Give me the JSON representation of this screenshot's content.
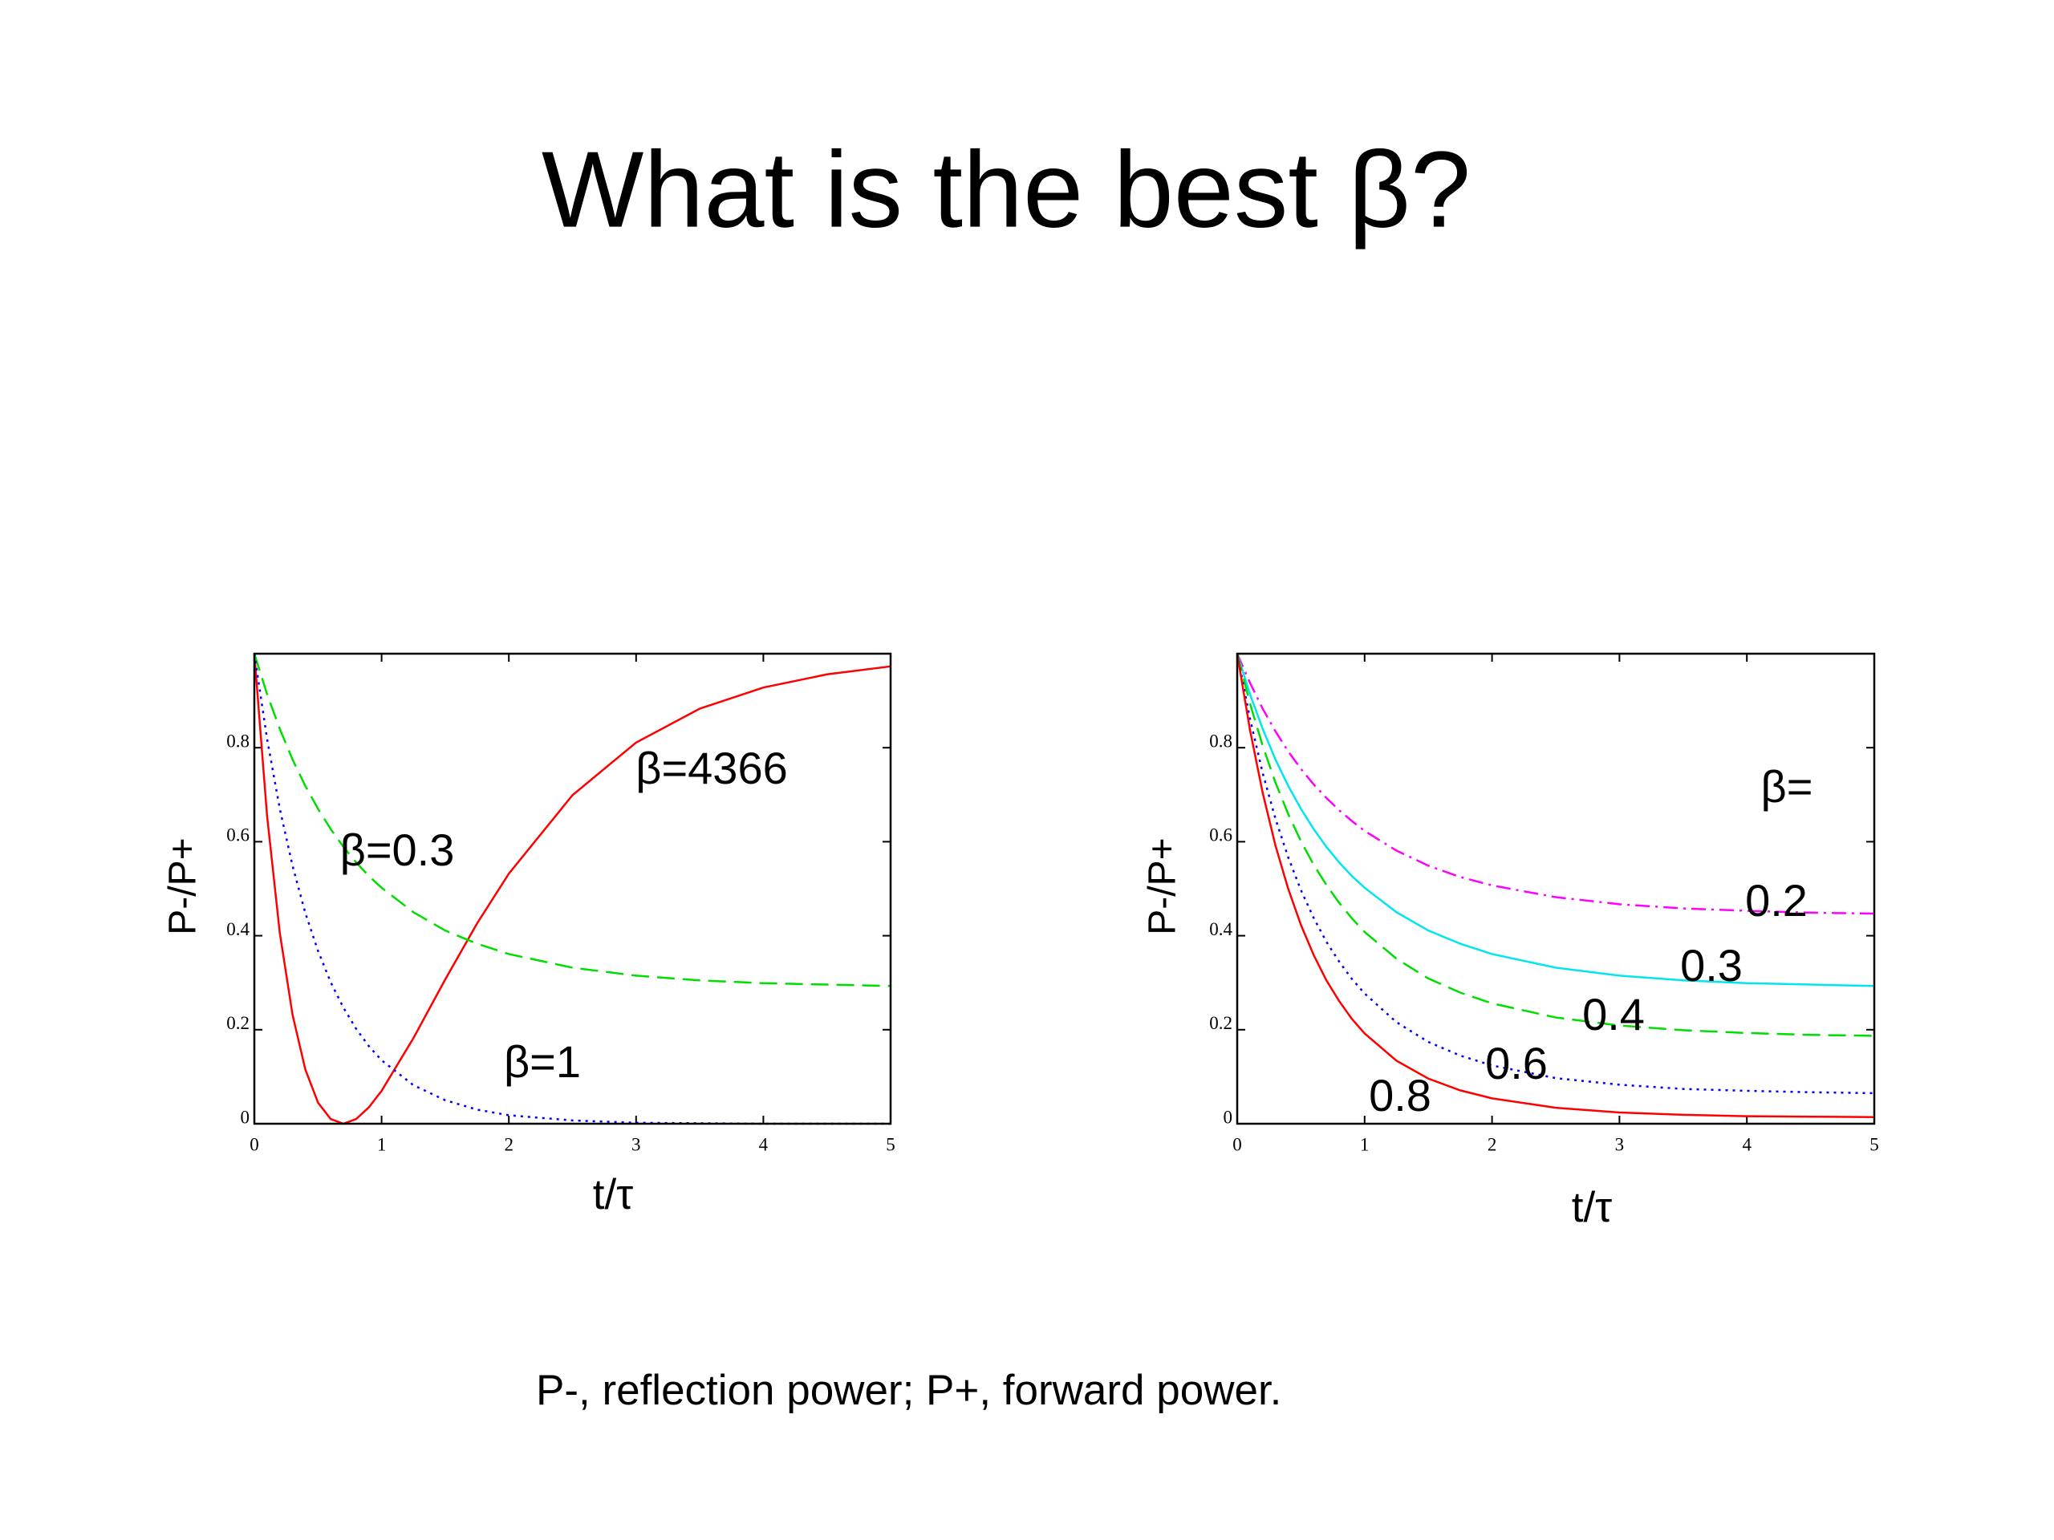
{
  "title": "What is the best β?",
  "caption": "P-, reflection power; P+, forward power.",
  "chart_data": [
    {
      "type": "line",
      "xlabel": "t/τ",
      "ylabel": "P-/P+",
      "x": [
        0,
        0.1,
        0.2,
        0.3,
        0.4,
        0.5,
        0.6,
        0.7,
        0.8,
        0.9,
        1,
        1.25,
        1.5,
        1.75,
        2,
        2.5,
        3,
        3.5,
        4,
        4.5,
        5
      ],
      "xlim": [
        0,
        5
      ],
      "xticks": [
        0,
        1,
        2,
        3,
        4,
        5
      ],
      "ylim": [
        0,
        1
      ],
      "yticks": [
        0,
        0.2,
        0.4,
        0.6,
        0.8
      ],
      "series": [
        {
          "name": "β=4366",
          "color": "#ff0000",
          "style": "solid",
          "values": [
            1,
            0.655,
            0.406,
            0.232,
            0.116,
            0.045,
            0.01,
            0.0,
            0.01,
            0.035,
            0.07,
            0.182,
            0.307,
            0.426,
            0.532,
            0.699,
            0.811,
            0.883,
            0.928,
            0.956,
            0.973
          ]
        },
        {
          "name": "β=0.3",
          "color": "#00dd00",
          "style": "dashed",
          "values": [
            1,
            0.914,
            0.84,
            0.775,
            0.719,
            0.67,
            0.627,
            0.589,
            0.556,
            0.527,
            0.502,
            0.45,
            0.411,
            0.383,
            0.361,
            0.332,
            0.315,
            0.305,
            0.299,
            0.296,
            0.293
          ]
        },
        {
          "name": "β=1",
          "color": "#0000ff",
          "style": "dotted",
          "values": [
            1,
            0.819,
            0.67,
            0.549,
            0.449,
            0.368,
            0.301,
            0.247,
            0.202,
            0.165,
            0.135,
            0.082,
            0.05,
            0.03,
            0.018,
            0.007,
            0.002,
            0.001,
            0.0,
            0.0,
            0.0
          ]
        }
      ]
    },
    {
      "type": "line",
      "xlabel": "t/τ",
      "ylabel": "P-/P+",
      "annotation": "β=",
      "x": [
        0,
        0.1,
        0.2,
        0.3,
        0.4,
        0.5,
        0.6,
        0.7,
        0.8,
        0.9,
        1,
        1.25,
        1.5,
        1.75,
        2,
        2.5,
        3,
        3.5,
        4,
        4.5,
        5
      ],
      "xlim": [
        0,
        5
      ],
      "xticks": [
        0,
        1,
        2,
        3,
        4,
        5
      ],
      "ylim": [
        0,
        1
      ],
      "yticks": [
        0,
        0.2,
        0.4,
        0.6,
        0.8
      ],
      "series": [
        {
          "name": "0.2",
          "color": "#ff00ff",
          "style": "dashdot",
          "values": [
            1,
            0.938,
            0.883,
            0.835,
            0.792,
            0.755,
            0.722,
            0.693,
            0.667,
            0.644,
            0.623,
            0.581,
            0.549,
            0.525,
            0.507,
            0.482,
            0.467,
            0.458,
            0.453,
            0.449,
            0.447
          ]
        },
        {
          "name": "0.3",
          "color": "#00e5ee",
          "style": "solid",
          "values": [
            1,
            0.914,
            0.84,
            0.775,
            0.719,
            0.67,
            0.627,
            0.589,
            0.556,
            0.527,
            0.502,
            0.45,
            0.411,
            0.383,
            0.361,
            0.332,
            0.315,
            0.305,
            0.299,
            0.296,
            0.293
          ]
        },
        {
          "name": "0.4",
          "color": "#00dd00",
          "style": "dashed",
          "values": [
            1,
            0.894,
            0.804,
            0.726,
            0.659,
            0.601,
            0.551,
            0.508,
            0.47,
            0.437,
            0.408,
            0.351,
            0.309,
            0.279,
            0.256,
            0.226,
            0.209,
            0.199,
            0.193,
            0.189,
            0.187
          ]
        },
        {
          "name": "0.6",
          "color": "#0000ff",
          "style": "dotted",
          "values": [
            1,
            0.862,
            0.746,
            0.649,
            0.567,
            0.497,
            0.438,
            0.387,
            0.345,
            0.308,
            0.277,
            0.216,
            0.174,
            0.145,
            0.124,
            0.097,
            0.083,
            0.074,
            0.07,
            0.067,
            0.065
          ]
        },
        {
          "name": "0.8",
          "color": "#ff0000",
          "style": "solid",
          "values": [
            1,
            0.838,
            0.704,
            0.592,
            0.5,
            0.423,
            0.359,
            0.305,
            0.261,
            0.223,
            0.192,
            0.134,
            0.096,
            0.071,
            0.054,
            0.034,
            0.024,
            0.019,
            0.016,
            0.015,
            0.014
          ]
        }
      ]
    }
  ]
}
